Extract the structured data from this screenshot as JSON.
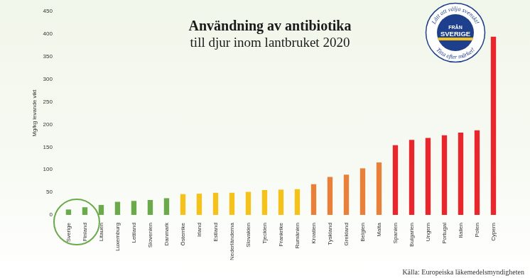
{
  "chart_data": {
    "type": "bar",
    "title": "Användning av antibiotika",
    "subtitle": "till djur inom lantbruket 2020",
    "y_label": "Mg/kg levande vikt",
    "source": "Källa: Europeiska läkemedelsmyndigheten",
    "badge": {
      "top": "Lätt att välja svenskt!",
      "middle": [
        "FRÅN",
        "SVERIGE"
      ],
      "bottom": "Titta efter märket!"
    },
    "categories": [
      "Sverige",
      "Finland",
      "Litauen",
      "Luxemburg",
      "Lettland",
      "Slovenien",
      "Danmark",
      "Österrike",
      "Irland",
      "Estland",
      "Nederländerna",
      "Slovakien",
      "Tjeckien",
      "Frankrike",
      "Rumänien",
      "Kroatien",
      "Tyskland",
      "Grekland",
      "Belgien",
      "Malta",
      "Spanien",
      "Bulgarien",
      "Ungern",
      "Portugal",
      "Italien",
      "Polen",
      "Cypern"
    ],
    "values": [
      12,
      17,
      22,
      29,
      31,
      33,
      37,
      46,
      47,
      49,
      49,
      51,
      55,
      56,
      57,
      68,
      84,
      89,
      103,
      116,
      154,
      166,
      170,
      176,
      182,
      187,
      394
    ],
    "colors": [
      "#6aaa4a",
      "#6aaa4a",
      "#6aaa4a",
      "#6aaa4a",
      "#6aaa4a",
      "#6aaa4a",
      "#6aaa4a",
      "#f5c21b",
      "#f5c21b",
      "#f5c21b",
      "#f5c21b",
      "#f5c21b",
      "#f5c21b",
      "#f5c21b",
      "#f5c21b",
      "#e8803a",
      "#e8803a",
      "#e8803a",
      "#e8803a",
      "#e8803a",
      "#e8262b",
      "#e8262b",
      "#e8262b",
      "#e8262b",
      "#e8262b",
      "#e8262b",
      "#e8262b"
    ],
    "ylim": [
      0,
      450
    ],
    "yticks": [
      0,
      50,
      100,
      150,
      200,
      250,
      300,
      350,
      400,
      450
    ],
    "grid": false
  }
}
